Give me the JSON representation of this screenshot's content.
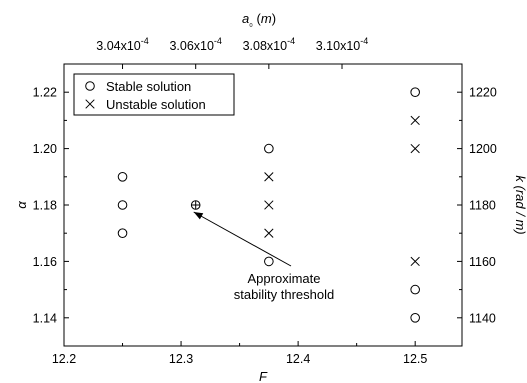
{
  "chart_data": {
    "type": "scatter",
    "xlabel": "F",
    "ylabel_left": "α",
    "ylabel_right": "k (rad / m)",
    "top_xlabel": "a₀ (m)",
    "x_ticks": [
      "12.2",
      "12.3",
      "12.4",
      "12.5"
    ],
    "x_tick_values": [
      12.2,
      12.3,
      12.4,
      12.5
    ],
    "xlim": [
      12.2,
      12.54
    ],
    "ylim": [
      1.13,
      1.23
    ],
    "y_ticks": [
      "1.14",
      "1.16",
      "1.18",
      "1.20",
      "1.22"
    ],
    "y_tick_values": [
      1.14,
      1.16,
      1.18,
      1.2,
      1.22
    ],
    "right_ticks": [
      "1140",
      "1160",
      "1180",
      "1200",
      "1220"
    ],
    "right_tick_values": [
      1.14,
      1.16,
      1.18,
      1.2,
      1.22
    ],
    "top_ticks": [
      {
        "base": "3.04x10",
        "exp": "-4",
        "x": 12.25
      },
      {
        "base": "3.06x10",
        "exp": "-4",
        "x": 12.3125
      },
      {
        "base": "3.08x10",
        "exp": "-4",
        "x": 12.375
      },
      {
        "base": "3.10x10",
        "exp": "-4",
        "x": 12.4375
      }
    ],
    "legend": {
      "position": "top-left",
      "entries": [
        "Stable solution",
        "Unstable solution"
      ]
    },
    "series": [
      {
        "name": "Stable solution",
        "marker": "circle",
        "points": [
          {
            "x": 12.25,
            "y": 1.17
          },
          {
            "x": 12.25,
            "y": 1.18
          },
          {
            "x": 12.25,
            "y": 1.19
          },
          {
            "x": 12.375,
            "y": 1.16
          },
          {
            "x": 12.375,
            "y": 1.2
          },
          {
            "x": 12.5,
            "y": 1.14
          },
          {
            "x": 12.5,
            "y": 1.15
          },
          {
            "x": 12.5,
            "y": 1.22
          }
        ]
      },
      {
        "name": "Unstable solution",
        "marker": "cross",
        "points": [
          {
            "x": 12.375,
            "y": 1.17
          },
          {
            "x": 12.375,
            "y": 1.18
          },
          {
            "x": 12.375,
            "y": 1.19
          },
          {
            "x": 12.5,
            "y": 1.16
          },
          {
            "x": 12.5,
            "y": 1.2
          },
          {
            "x": 12.5,
            "y": 1.21
          }
        ]
      }
    ],
    "threshold_point": {
      "x": 12.3125,
      "y": 1.18
    },
    "annotation": {
      "lines": [
        "Approximate",
        "stability threshold"
      ]
    }
  }
}
